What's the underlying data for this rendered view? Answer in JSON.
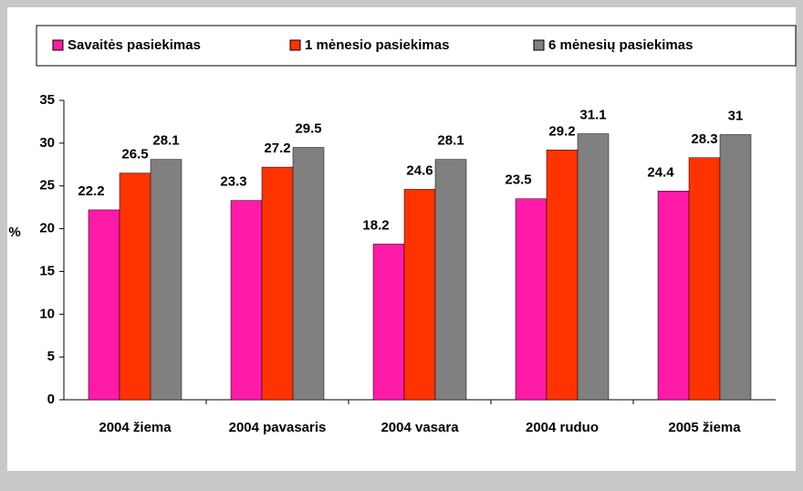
{
  "chart_data": {
    "type": "bar",
    "y_label": "%",
    "categories": [
      "2004 žiema",
      "2004 pavasaris",
      "2004 vasara",
      "2004 ruduo",
      "2005 žiema"
    ],
    "series": [
      {
        "name": "Savaitės pasiekimas",
        "color": "#ff1aa8",
        "values": [
          22.2,
          23.3,
          18.2,
          23.5,
          24.4
        ]
      },
      {
        "name": "1 mėnesio pasiekimas",
        "color": "#ff3300",
        "values": [
          26.5,
          27.2,
          24.6,
          29.2,
          28.3
        ]
      },
      {
        "name": "6 mėnesių pasiekimas",
        "color": "#808080",
        "values": [
          28.1,
          29.5,
          28.1,
          31.1,
          31
        ]
      }
    ],
    "ylim": [
      0,
      35
    ],
    "yticks": [
      0,
      5,
      10,
      15,
      20,
      25,
      30,
      35
    ],
    "legend": "top"
  }
}
